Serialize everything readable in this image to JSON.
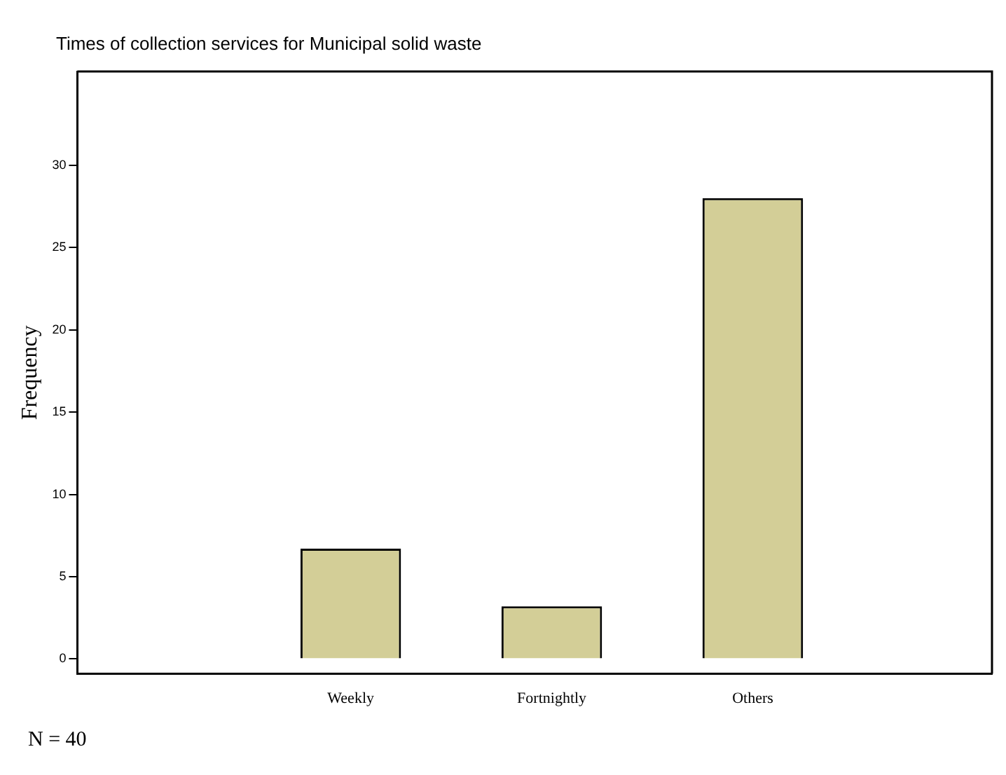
{
  "chart_data": {
    "type": "bar",
    "title": "Times of collection services for Municipal solid waste",
    "ylabel": "Frequency",
    "categories": [
      "Weekly",
      "Fortnightly",
      "Others"
    ],
    "values": [
      6.7,
      3.2,
      28
    ],
    "color": "#d3ce97",
    "ylim": [
      -0.9,
      35.7
    ],
    "yticks": [
      0,
      5,
      10,
      15,
      20,
      25,
      30
    ],
    "grid": false,
    "legend": false,
    "annotations": [
      "N = 40"
    ]
  }
}
